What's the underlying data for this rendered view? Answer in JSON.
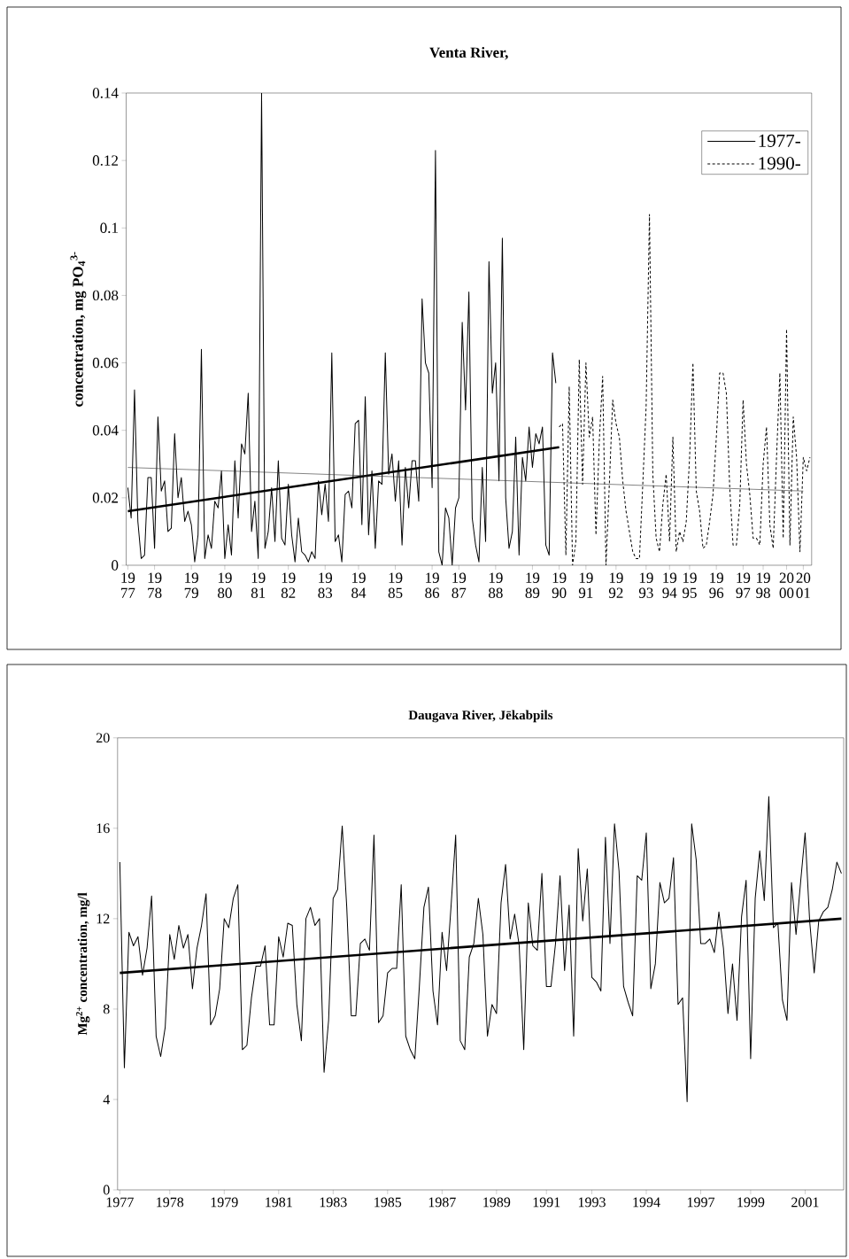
{
  "chart_data": [
    {
      "type": "line",
      "title": "Venta River,",
      "ylabel": "concentration, mg PO$_{4}$$^{3-}$",
      "ylim": [
        0,
        0.14
      ],
      "yticks": [
        0,
        0.02,
        0.04,
        0.06,
        0.08,
        0.1,
        0.12,
        0.14
      ],
      "categories": [
        "19 77",
        null,
        null,
        null,
        null,
        null,
        null,
        null,
        "19 78",
        null,
        null,
        null,
        null,
        null,
        null,
        null,
        null,
        null,
        null,
        "19 79",
        null,
        null,
        null,
        null,
        null,
        null,
        null,
        null,
        null,
        "19 80",
        null,
        null,
        null,
        null,
        null,
        null,
        null,
        null,
        null,
        "19 81",
        null,
        null,
        null,
        null,
        null,
        null,
        null,
        null,
        "19 82",
        null,
        null,
        null,
        null,
        null,
        null,
        null,
        null,
        null,
        null,
        "19 83",
        null,
        null,
        null,
        null,
        null,
        null,
        null,
        null,
        null,
        "19 84",
        null,
        null,
        null,
        null,
        null,
        null,
        null,
        null,
        null,
        null,
        "19 85",
        null,
        null,
        null,
        null,
        null,
        null,
        null,
        null,
        null,
        null,
        "19 86",
        null,
        null,
        null,
        null,
        null,
        null,
        null,
        "19 87",
        null,
        null,
        null,
        null,
        null,
        null,
        null,
        null,
        null,
        null,
        "19 88",
        null,
        null,
        null,
        null,
        null,
        null,
        null,
        null,
        null,
        null,
        "19 89",
        null,
        null,
        null,
        null,
        null,
        null,
        null,
        "19 90",
        null,
        null,
        null,
        null,
        null,
        null,
        null,
        "19 91",
        null,
        null,
        null,
        null,
        null,
        null,
        null,
        null,
        "19 92",
        null,
        null,
        null,
        null,
        null,
        null,
        null,
        null,
        "19 93",
        null,
        null,
        null,
        null,
        null,
        null,
        "19 94",
        null,
        null,
        null,
        null,
        null,
        "19 95",
        null,
        null,
        null,
        null,
        null,
        null,
        null,
        "19 96",
        null,
        null,
        null,
        null,
        null,
        null,
        null,
        "19 97",
        null,
        null,
        null,
        null,
        null,
        "19 98",
        null,
        null,
        null,
        null,
        null,
        null,
        "20 00",
        null,
        null,
        null,
        null,
        "20 01",
        null,
        null
      ],
      "legend": "top right",
      "series": [
        {
          "name": "1977-",
          "color": "#000000",
          "line_style": "solid",
          "values": [
            0.023,
            0.014,
            0.052,
            0.013,
            0.002,
            0.003,
            0.026,
            0.026,
            0.005,
            0.044,
            0.022,
            0.025,
            0.01,
            0.011,
            0.039,
            0.02,
            0.026,
            0.013,
            0.016,
            0.012,
            0.001,
            0.009,
            0.064,
            0.002,
            0.009,
            0.005,
            0.019,
            0.017,
            0.028,
            0.002,
            0.012,
            0.003,
            0.031,
            0.014,
            0.036,
            0.033,
            0.051,
            0.01,
            0.019,
            0.002,
            0.14,
            0.005,
            0.01,
            0.023,
            0.007,
            0.031,
            0.008,
            0.006,
            0.024,
            0.009,
            0.001,
            0.014,
            0.004,
            0.003,
            0.001,
            0.004,
            0.002,
            0.025,
            0.015,
            0.024,
            0.013,
            0.063,
            0.007,
            0.009,
            0.001,
            0.021,
            0.022,
            0.017,
            0.042,
            0.043,
            0.012,
            0.05,
            0.009,
            0.028,
            0.005,
            0.025,
            0.024,
            0.063,
            0.027,
            0.033,
            0.019,
            0.031,
            0.006,
            0.029,
            0.017,
            0.031,
            0.031,
            0.019,
            0.079,
            0.06,
            0.057,
            0.023,
            0.123,
            0.004,
            0.0,
            0.017,
            0.014,
            0.0,
            0.017,
            0.02,
            0.072,
            0.046,
            0.081,
            0.014,
            0.006,
            0.001,
            0.029,
            0.007,
            0.09,
            0.051,
            0.06,
            0.025,
            0.097,
            0.02,
            0.005,
            0.01,
            0.038,
            0.003,
            0.032,
            0.025,
            0.041,
            0.029,
            0.039,
            0.036,
            0.041,
            0.006,
            0.003,
            0.063,
            0.054,
            null,
            null,
            null,
            null,
            null,
            null,
            null,
            null,
            null,
            null,
            null,
            null,
            null,
            null,
            null,
            null,
            null,
            null,
            null,
            null,
            null,
            null,
            null,
            null,
            null,
            null,
            null,
            null,
            null,
            null,
            null,
            null,
            null,
            null,
            null,
            null,
            null,
            null,
            null,
            null,
            null,
            null,
            null,
            null,
            null,
            null,
            null,
            null,
            null,
            null,
            null,
            null,
            null,
            null,
            null,
            null,
            null,
            null,
            null,
            null,
            null,
            null,
            null,
            null,
            null,
            null,
            null,
            null,
            null,
            null,
            null,
            null,
            null,
            null,
            null,
            null
          ]
        },
        {
          "name": "1990-",
          "color": "#000000",
          "line_style": "dotted",
          "values": [
            null,
            null,
            null,
            null,
            null,
            null,
            null,
            null,
            null,
            null,
            null,
            null,
            null,
            null,
            null,
            null,
            null,
            null,
            null,
            null,
            null,
            null,
            null,
            null,
            null,
            null,
            null,
            null,
            null,
            null,
            null,
            null,
            null,
            null,
            null,
            null,
            null,
            null,
            null,
            null,
            null,
            null,
            null,
            null,
            null,
            null,
            null,
            null,
            null,
            null,
            null,
            null,
            null,
            null,
            null,
            null,
            null,
            null,
            null,
            null,
            null,
            null,
            null,
            null,
            null,
            null,
            null,
            null,
            null,
            null,
            null,
            null,
            null,
            null,
            null,
            null,
            null,
            null,
            null,
            null,
            null,
            null,
            null,
            null,
            null,
            null,
            null,
            null,
            null,
            null,
            null,
            null,
            null,
            null,
            null,
            null,
            null,
            null,
            null,
            null,
            null,
            null,
            null,
            null,
            null,
            null,
            null,
            null,
            null,
            null,
            null,
            null,
            null,
            null,
            null,
            null,
            null,
            null,
            null,
            null,
            null,
            null,
            null,
            null,
            null,
            null,
            null,
            null,
            null,
            0.041,
            0.042,
            0.003,
            0.053,
            0.0,
            0.007,
            0.061,
            0.024,
            0.06,
            0.038,
            0.044,
            0.009,
            0.037,
            0.056,
            0.0,
            0.024,
            0.049,
            0.042,
            0.038,
            0.025,
            0.016,
            0.01,
            0.004,
            0.002,
            0.002,
            0.024,
            0.047,
            0.104,
            0.027,
            0.008,
            0.004,
            0.018,
            0.027,
            0.007,
            0.038,
            0.004,
            0.01,
            0.007,
            0.013,
            0.032,
            0.06,
            0.022,
            0.016,
            0.005,
            0.006,
            0.013,
            0.021,
            0.038,
            0.057,
            0.057,
            0.051,
            0.023,
            0.006,
            0.006,
            0.018,
            0.049,
            0.03,
            0.021,
            0.008,
            0.008,
            0.006,
            0.03,
            0.041,
            0.012,
            0.005,
            0.032,
            0.057,
            0.008,
            0.07,
            0.006,
            0.044,
            0.032,
            0.004,
            0.032,
            0.028,
            0.032
          ]
        },
        {
          "type": "line",
          "color": "#000000",
          "line_style": "solid",
          "x": [
            "19 77",
            "19 90"
          ],
          "values": [
            0.016,
            0.035
          ]
        },
        {
          "type": "line",
          "color": "#333333",
          "line_style": "solid",
          "x": [
            "19 77",
            "20 01"
          ],
          "values": [
            0.029,
            0.022
          ]
        }
      ]
    },
    {
      "type": "line",
      "title": "Daugava River, Jēkabpils",
      "ylabel": "Mg$^{2+}$ concentration, mg/l",
      "ylim": [
        0,
        20
      ],
      "yticks": [
        0,
        4,
        8,
        12,
        16,
        20
      ],
      "categories": [
        "1977",
        null,
        null,
        null,
        null,
        null,
        null,
        null,
        null,
        null,
        null,
        "1978",
        null,
        null,
        null,
        null,
        null,
        null,
        null,
        null,
        null,
        null,
        null,
        "1979",
        null,
        null,
        null,
        null,
        null,
        null,
        null,
        null,
        null,
        null,
        null,
        "1981",
        null,
        null,
        null,
        null,
        null,
        null,
        null,
        null,
        null,
        null,
        null,
        "1983",
        null,
        null,
        null,
        null,
        null,
        null,
        null,
        null,
        null,
        null,
        null,
        "1985",
        null,
        null,
        null,
        null,
        null,
        null,
        null,
        null,
        null,
        null,
        null,
        "1987",
        null,
        null,
        null,
        null,
        null,
        null,
        null,
        null,
        null,
        null,
        null,
        "1989",
        null,
        null,
        null,
        null,
        null,
        null,
        null,
        null,
        null,
        null,
        "1991",
        null,
        null,
        null,
        null,
        null,
        null,
        null,
        null,
        null,
        "1993",
        null,
        null,
        null,
        null,
        null,
        null,
        null,
        null,
        null,
        null,
        null,
        "1994",
        null,
        null,
        null,
        null,
        null,
        null,
        null,
        null,
        null,
        null,
        null,
        "1997",
        null,
        null,
        null,
        null,
        null,
        null,
        null,
        null,
        null,
        null,
        "1999",
        null,
        null,
        null,
        null,
        null,
        null,
        null,
        null,
        null,
        null,
        null,
        "2001",
        null,
        null,
        null,
        null,
        null,
        null,
        null,
        null
      ],
      "series": [
        {
          "color": "#000000",
          "line_style": "solid",
          "values": [
            14.5,
            5.4,
            11.4,
            10.8,
            11.2,
            9.5,
            10.7,
            13.0,
            6.8,
            5.9,
            7.2,
            11.3,
            10.2,
            11.7,
            10.7,
            11.3,
            8.9,
            10.7,
            11.7,
            13.1,
            7.3,
            7.7,
            8.9,
            12.0,
            11.6,
            12.9,
            13.5,
            6.2,
            6.4,
            8.5,
            9.9,
            9.9,
            10.8,
            7.3,
            7.3,
            11.2,
            10.3,
            11.8,
            11.7,
            8.2,
            6.6,
            12.0,
            12.5,
            11.7,
            12.0,
            5.2,
            7.5,
            12.9,
            13.3,
            16.1,
            12.5,
            7.7,
            7.7,
            10.9,
            11.1,
            10.6,
            15.7,
            7.4,
            7.7,
            9.6,
            9.8,
            9.8,
            13.5,
            6.8,
            6.2,
            5.8,
            9.0,
            12.5,
            13.4,
            8.8,
            7.3,
            11.4,
            9.7,
            12.6,
            15.7,
            6.6,
            6.2,
            10.3,
            10.9,
            12.9,
            11.3,
            6.8,
            8.2,
            7.8,
            12.7,
            14.4,
            11.1,
            12.2,
            10.8,
            6.2,
            12.7,
            10.8,
            10.6,
            14.0,
            9.0,
            9.0,
            10.9,
            13.9,
            9.7,
            12.6,
            6.8,
            15.1,
            11.9,
            14.2,
            9.4,
            9.2,
            8.8,
            15.6,
            10.9,
            16.2,
            14.1,
            9.0,
            8.3,
            7.7,
            13.9,
            13.7,
            15.8,
            8.9,
            10.0,
            13.6,
            12.7,
            12.9,
            14.7,
            8.2,
            8.5,
            3.9,
            16.2,
            14.6,
            10.9,
            10.9,
            11.1,
            10.5,
            12.3,
            10.7,
            7.8,
            10.0,
            7.5,
            12.1,
            13.7,
            5.8,
            12.9,
            15.0,
            12.8,
            17.4,
            11.6,
            11.8,
            8.4,
            7.5,
            13.6,
            11.3,
            13.6,
            15.8,
            11.9,
            9.6,
            11.9,
            12.3,
            12.5,
            13.3,
            14.5,
            14.0
          ]
        },
        {
          "type": "line",
          "color": "#000000",
          "line_style": "solid",
          "values": [
            9.6,
            null,
            null,
            null,
            null,
            null,
            null,
            null,
            null,
            null,
            null,
            null,
            null,
            null,
            null,
            null,
            null,
            null,
            null,
            null,
            null,
            null,
            null,
            null,
            null,
            null,
            null,
            null,
            null,
            null,
            null,
            null,
            null,
            null,
            null,
            null,
            null,
            null,
            null,
            null,
            null,
            null,
            null,
            null,
            null,
            null,
            null,
            null,
            null,
            null,
            null,
            null,
            null,
            null,
            null,
            null,
            null,
            null,
            null,
            null,
            null,
            null,
            null,
            null,
            null,
            null,
            null,
            null,
            null,
            null,
            null,
            null,
            null,
            null,
            null,
            null,
            null,
            null,
            null,
            null,
            null,
            null,
            null,
            null,
            null,
            null,
            null,
            null,
            null,
            null,
            null,
            null,
            null,
            null,
            null,
            null,
            null,
            null,
            null,
            null,
            null,
            null,
            null,
            null,
            null,
            null,
            null,
            null,
            null,
            null,
            null,
            null,
            null,
            null,
            null,
            null,
            null,
            null,
            null,
            null,
            null,
            null,
            null,
            null,
            null,
            null,
            null,
            null,
            null,
            null,
            null,
            null,
            null,
            null,
            null,
            null,
            null,
            null,
            null,
            null,
            null,
            null,
            null,
            null,
            null,
            null,
            null,
            null,
            null,
            null,
            null,
            null,
            null,
            null,
            null,
            null,
            null,
            null,
            null,
            12.0
          ]
        }
      ]
    }
  ]
}
